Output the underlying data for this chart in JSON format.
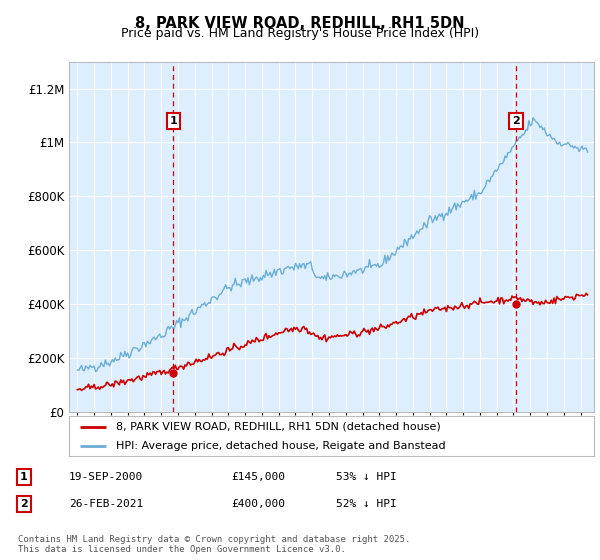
{
  "title": "8, PARK VIEW ROAD, REDHILL, RH1 5DN",
  "subtitle": "Price paid vs. HM Land Registry's House Price Index (HPI)",
  "legend_line1": "8, PARK VIEW ROAD, REDHILL, RH1 5DN (detached house)",
  "legend_line2": "HPI: Average price, detached house, Reigate and Banstead",
  "footnote": "Contains HM Land Registry data © Crown copyright and database right 2025.\nThis data is licensed under the Open Government Licence v3.0.",
  "sale1_date": "19-SEP-2000",
  "sale1_price": "£145,000",
  "sale1_hpi": "53% ↓ HPI",
  "sale2_date": "26-FEB-2021",
  "sale2_price": "£400,000",
  "sale2_hpi": "52% ↓ HPI",
  "sale1_year": 2000.72,
  "sale1_value": 145000,
  "sale2_year": 2021.15,
  "sale2_value": 400000,
  "ylim_max": 1300000,
  "xlim_min": 1994.5,
  "xlim_max": 2025.8,
  "hpi_color": "#6baed6",
  "price_color": "#cc0000",
  "vline_color": "#cc0000",
  "bg_color": "#ddeeff",
  "grid_color": "#ffffff"
}
